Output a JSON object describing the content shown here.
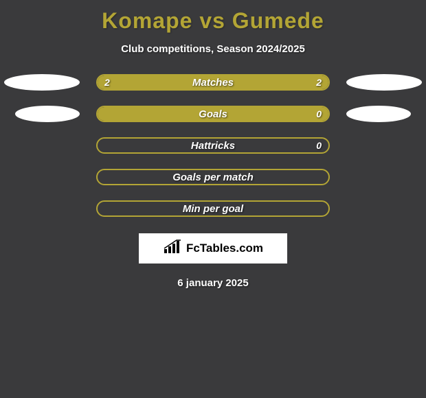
{
  "background_color": "#3a3a3c",
  "title": {
    "player1": "Komape",
    "vs": "vs",
    "player2": "Gumede",
    "color": "#b3a535"
  },
  "subtitle": "Club competitions, Season 2024/2025",
  "accent_color": "#b3a535",
  "bar_bg_color": "#b3a535",
  "bar_border_color": "#b3a535",
  "rows": [
    {
      "label": "Matches",
      "left_value": "2",
      "right_value": "2",
      "left_fill_pct": 50,
      "right_fill_pct": 50,
      "left_ellipse_w": 110,
      "right_ellipse_w": 110,
      "left_ellipse_ml": 6,
      "right_ellipse_mr": 6
    },
    {
      "label": "Goals",
      "left_value": "",
      "right_value": "0",
      "left_fill_pct": 100,
      "right_fill_pct": 0,
      "left_ellipse_w": 94,
      "right_ellipse_w": 94,
      "left_ellipse_ml": 22,
      "right_ellipse_mr": 22
    },
    {
      "label": "Hattricks",
      "left_value": "",
      "right_value": "0",
      "left_fill_pct": 0,
      "right_fill_pct": 0,
      "left_ellipse_w": 0,
      "right_ellipse_w": 0,
      "left_ellipse_ml": 0,
      "right_ellipse_mr": 0
    },
    {
      "label": "Goals per match",
      "left_value": "",
      "right_value": "",
      "left_fill_pct": 0,
      "right_fill_pct": 0,
      "left_ellipse_w": 0,
      "right_ellipse_w": 0,
      "left_ellipse_ml": 0,
      "right_ellipse_mr": 0
    },
    {
      "label": "Min per goal",
      "left_value": "",
      "right_value": "",
      "left_fill_pct": 0,
      "right_fill_pct": 0,
      "left_ellipse_w": 0,
      "right_ellipse_w": 0,
      "left_ellipse_ml": 0,
      "right_ellipse_mr": 0
    }
  ],
  "logo_text": "FcTables.com",
  "date": "6 january 2025"
}
